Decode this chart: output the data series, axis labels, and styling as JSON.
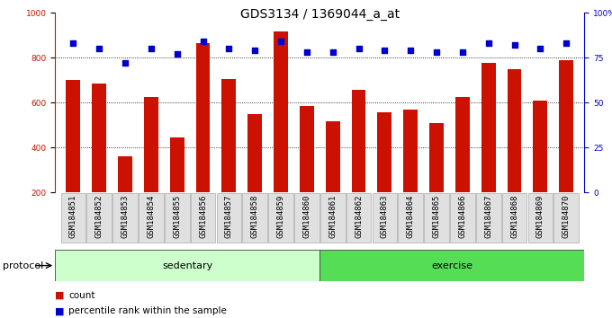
{
  "title": "GDS3134 / 1369044_a_at",
  "categories": [
    "GSM184851",
    "GSM184852",
    "GSM184853",
    "GSM184854",
    "GSM184855",
    "GSM184856",
    "GSM184857",
    "GSM184858",
    "GSM184859",
    "GSM184860",
    "GSM184861",
    "GSM184862",
    "GSM184863",
    "GSM184864",
    "GSM184865",
    "GSM184866",
    "GSM184867",
    "GSM184868",
    "GSM184869",
    "GSM184870"
  ],
  "counts": [
    700,
    685,
    360,
    625,
    445,
    865,
    705,
    550,
    915,
    585,
    515,
    655,
    555,
    570,
    510,
    625,
    775,
    750,
    610,
    790
  ],
  "percentile_ranks": [
    83,
    80,
    72,
    80,
    77,
    84,
    80,
    79,
    84,
    78,
    78,
    80,
    79,
    79,
    78,
    78,
    83,
    82,
    80,
    83
  ],
  "bar_color": "#cc1100",
  "dot_color": "#0000cc",
  "left_ylim": [
    200,
    1000
  ],
  "left_yticks": [
    200,
    400,
    600,
    800,
    1000
  ],
  "right_ylim": [
    0,
    100
  ],
  "right_yticks": [
    0,
    25,
    50,
    75,
    100
  ],
  "right_yticklabels": [
    "0",
    "25",
    "50",
    "75",
    "100%"
  ],
  "grid_values": [
    400,
    600,
    800
  ],
  "sedentary_count": 10,
  "exercise_count": 10,
  "sedentary_color": "#ccffcc",
  "exercise_color": "#55dd55",
  "protocol_label": "protocol",
  "sedentary_label": "sedentary",
  "exercise_label": "exercise",
  "legend_count_label": "count",
  "legend_percentile_label": "percentile rank within the sample",
  "background_color": "#ffffff",
  "title_fontsize": 10,
  "tick_fontsize": 6.5,
  "bar_width": 0.55
}
